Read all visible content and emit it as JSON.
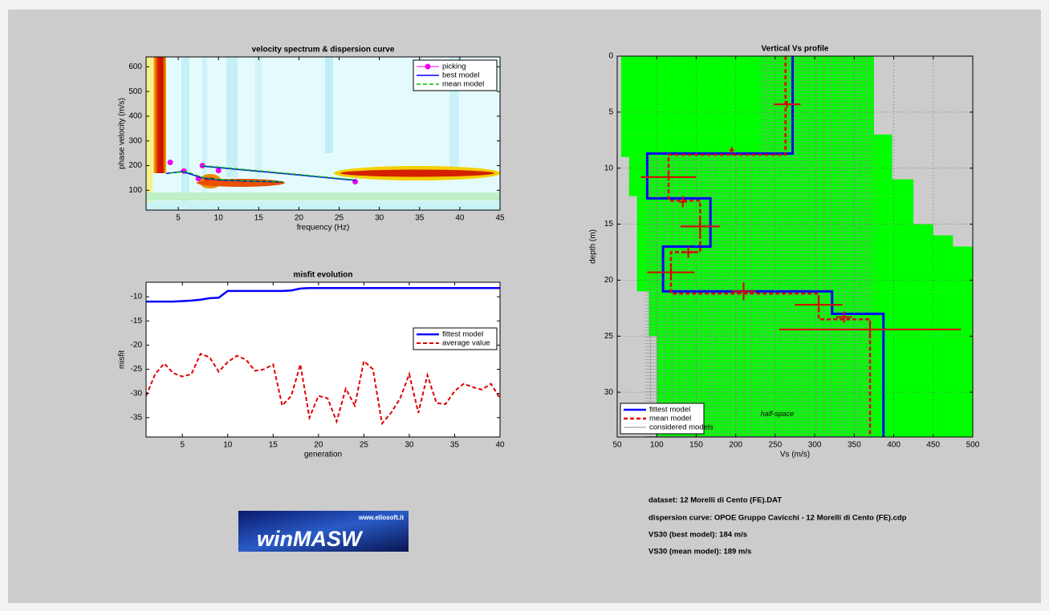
{
  "chart_data": [
    {
      "type": "line",
      "title": "velocity spectrum & dispersion curve",
      "x_label": "frequency (Hz)",
      "y_label": "phase velocity (m/s)",
      "xlim": [
        1,
        45
      ],
      "ylim": [
        20,
        640
      ],
      "xticks": [
        5,
        10,
        15,
        20,
        25,
        30,
        35,
        40,
        45
      ],
      "yticks": [
        100,
        200,
        300,
        400,
        500,
        600
      ],
      "grid": false,
      "legend": "northeast",
      "series": [
        {
          "name": "picking",
          "color": "#ee00ee",
          "marker": "o",
          "line_style": "none",
          "line_width": 1,
          "x": [
            4,
            5.7,
            7.5,
            8,
            10,
            27
          ],
          "values": [
            213,
            178,
            148,
            200,
            180,
            135
          ]
        },
        {
          "name": "best model",
          "color": "#0000ff",
          "line_style": "solid",
          "line_width": 1.5,
          "x": [
            3.5,
            5.5,
            8,
            10,
            14,
            18,
            19,
            8,
            14,
            20,
            27
          ],
          "values": [
            168,
            176,
            150,
            142,
            137,
            134,
            null,
            198,
            180,
            162,
            140
          ]
        },
        {
          "name": "mean model",
          "color": "#00bb00",
          "line_style": "dashed",
          "line_width": 1.5,
          "x": [
            4,
            6,
            8,
            10,
            14,
            18,
            19,
            8,
            14,
            20,
            27
          ],
          "values": [
            170,
            176,
            152,
            144,
            138,
            135,
            null,
            200,
            182,
            164,
            142
          ]
        }
      ]
    },
    {
      "type": "line",
      "title": "misfit evolution",
      "x_label": "generation",
      "y_label": "misfit",
      "xlim": [
        1,
        40
      ],
      "ylim": [
        -39,
        -7
      ],
      "xticks": [
        5,
        10,
        15,
        20,
        25,
        30,
        35,
        40
      ],
      "yticks": [
        -35,
        -30,
        -25,
        -20,
        -15,
        -10
      ],
      "grid": false,
      "legend": "east",
      "x": [
        1,
        2,
        3,
        4,
        5,
        6,
        7,
        8,
        9,
        10,
        11,
        12,
        13,
        14,
        15,
        16,
        17,
        18,
        19,
        20,
        21,
        22,
        23,
        24,
        25,
        26,
        27,
        28,
        29,
        30,
        31,
        32,
        33,
        34,
        35,
        36,
        37,
        38,
        39,
        40
      ],
      "series": [
        {
          "name": "fittest model",
          "color": "#0000ff",
          "line_style": "solid",
          "line_width": 2.5,
          "values": [
            -11,
            -11,
            -11,
            -11,
            -10.9,
            -10.8,
            -10.6,
            -10.3,
            -10.2,
            -8.8,
            -8.8,
            -8.8,
            -8.8,
            -8.8,
            -8.8,
            -8.8,
            -8.7,
            -8.3,
            -8.2,
            -8.2,
            -8.2,
            -8.2,
            -8.2,
            -8.2,
            -8.2,
            -8.2,
            -8.2,
            -8.2,
            -8.2,
            -8.2,
            -8.2,
            -8.2,
            -8.2,
            -8.2,
            -8.2,
            -8.2,
            -8.2,
            -8.2,
            -8.2,
            -8.2
          ]
        },
        {
          "name": "average value",
          "color": "#e00000",
          "line_style": "dashed",
          "line_width": 2,
          "values": [
            -30.5,
            -26,
            -23.8,
            -25.8,
            -26.5,
            -26,
            -21.8,
            -22.5,
            -25.5,
            -23.5,
            -22.2,
            -23,
            -25.3,
            -25,
            -24,
            -32.5,
            -30.5,
            -24,
            -35,
            -30.5,
            -31,
            -35.8,
            -29,
            -32.5,
            -23.3,
            -25,
            -36.2,
            -34,
            -31,
            -26,
            -34,
            -26.2,
            -32,
            -32.2,
            -29.5,
            -28,
            -28.7,
            -29.2,
            -28,
            -31
          ]
        }
      ]
    },
    {
      "type": "line",
      "title": "Vertical Vs profile",
      "x_label": "Vs (m/s)",
      "y_label": "depth (m)",
      "xlim": [
        50,
        500
      ],
      "ylim": [
        0,
        34
      ],
      "y_reversed": true,
      "xticks": [
        50,
        100,
        150,
        200,
        250,
        300,
        350,
        400,
        450,
        500
      ],
      "yticks": [
        0,
        5,
        10,
        15,
        20,
        25,
        30
      ],
      "grid": true,
      "legend": "southwest",
      "annotation": "half-space",
      "search_space": {
        "color": "#00ff00",
        "depth": [
          0,
          7,
          9,
          11,
          12.5,
          15,
          16,
          17,
          21,
          25,
          34
        ],
        "vs_min": [
          55,
          55,
          65,
          65,
          75,
          75,
          75,
          75,
          90,
          100
        ],
        "vs_max": [
          375,
          398,
          398,
          425,
          425,
          450,
          475,
          500,
          500,
          500
        ]
      },
      "series": [
        {
          "name": "fittest model",
          "color": "#0000ff",
          "line_style": "solid",
          "line_width": 3,
          "x": [
            272,
            272,
            88,
            88,
            168,
            168,
            108,
            108,
            322,
            322,
            387,
            387
          ],
          "values": [
            0,
            8.7,
            8.7,
            12.7,
            12.7,
            17,
            17,
            21,
            21,
            23,
            23,
            34
          ]
        },
        {
          "name": "mean model",
          "color": "#e00000",
          "line_style": "dashed",
          "line_width": 2.5,
          "x": [
            263,
            263,
            115,
            115,
            155,
            155,
            118,
            118,
            305,
            305,
            370,
            370
          ],
          "values": [
            0,
            8.8,
            8.8,
            12.9,
            12.9,
            17.5,
            17.5,
            21.2,
            21.2,
            23.5,
            23.5,
            34
          ]
        },
        {
          "name": "considered models",
          "color": "#8c8c8c",
          "line_width": 1,
          "depth": [
            0,
            8.5,
            34
          ],
          "vs_min": [
            230,
            85
          ],
          "vs_max": [
            375,
            375
          ]
        }
      ],
      "error_bars": {
        "color": "#e00000",
        "x": [
          265,
          195,
          115,
          133,
          155,
          140,
          118,
          210,
          305,
          337,
          370
        ],
        "values": [
          4.3,
          8.4,
          10.8,
          13,
          15.2,
          17.5,
          19.3,
          21,
          22.2,
          23.3,
          24.4
        ],
        "xerr": [
          17,
          3,
          35,
          5,
          25,
          8,
          30,
          15,
          30,
          10,
          115
        ],
        "yerr": [
          0.3,
          0.3,
          0.3,
          0.5,
          0.8,
          0.5,
          0.4,
          0.8,
          0.5,
          0.5,
          0.8
        ]
      }
    }
  ],
  "info": [
    "dataset: 12 Morelli di Cento (FE).DAT",
    "dispersion curve: OPOE Gruppo Cavicchi - 12 Morelli di Cento (FE).cdp",
    "VS30 (best model): 184 m/s",
    "VS30 (mean model): 189 m/s"
  ],
  "logo": {
    "url": "www.eliosoft.it",
    "name": "winMASW"
  }
}
